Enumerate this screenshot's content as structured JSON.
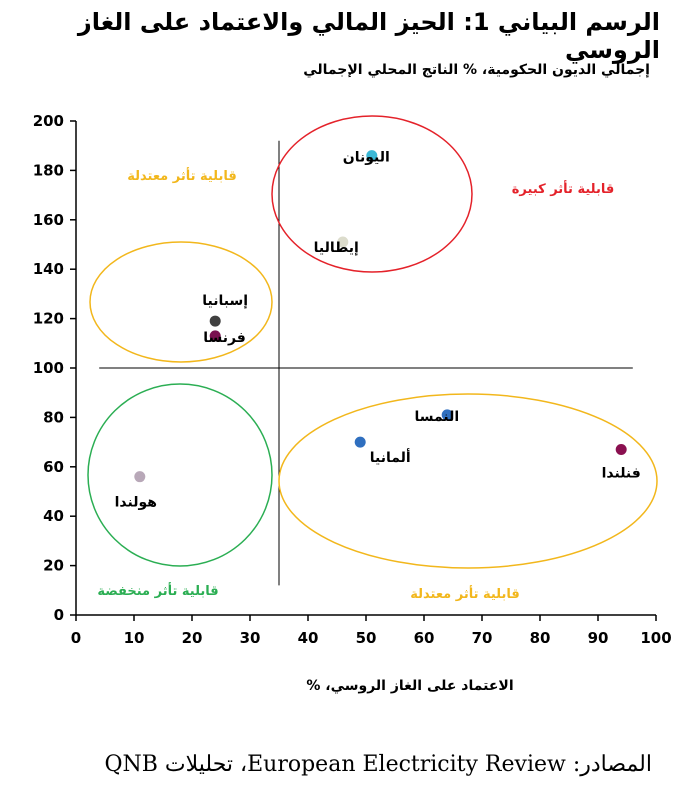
{
  "chart_data": {
    "type": "scatter",
    "title": "الرسم البياني 1: الحيز المالي والاعتماد على الغاز الروسي",
    "ylabel": "إجمالي الديون الحكومية، % الناتج المحلي الإجمالي",
    "xlabel": "الاعتماد على الغاز الروسي، %",
    "xlim": [
      0,
      100
    ],
    "ylim": [
      0,
      200
    ],
    "xticks": [
      0,
      10,
      20,
      30,
      40,
      50,
      60,
      70,
      80,
      90,
      100
    ],
    "yticks": [
      0,
      20,
      40,
      60,
      80,
      100,
      120,
      140,
      160,
      180,
      200
    ],
    "divider_x": 35,
    "divider_y": 100,
    "points": [
      {
        "name": "اليونان",
        "x": 51,
        "y": 186,
        "color": "#3bb8d6"
      },
      {
        "name": "إيطاليا",
        "x": 46,
        "y": 151,
        "color": "#dcdccc"
      },
      {
        "name": "إسبانيا",
        "x": 24,
        "y": 119,
        "color": "#404040"
      },
      {
        "name": "فرنسا",
        "x": 24,
        "y": 113,
        "color": "#7a1050"
      },
      {
        "name": "النمسا",
        "x": 64,
        "y": 81,
        "color": "#2f6fbf"
      },
      {
        "name": "ألمانيا",
        "x": 49,
        "y": 70,
        "color": "#2f6fbf"
      },
      {
        "name": "فنلندا",
        "x": 94,
        "y": 67,
        "color": "#8a1050"
      },
      {
        "name": "هولندا",
        "x": 11,
        "y": 56,
        "color": "#b8a8b8"
      }
    ],
    "zones": [
      {
        "label": "قابلية تأثر كبيرة",
        "color": "#e4222a"
      },
      {
        "label": "قابلية تأثر معتدلة",
        "color": "#f2b71c"
      },
      {
        "label": "قابلية تأثر معتدلة",
        "color": "#f2b71c"
      },
      {
        "label": "قابلية تأثر منخفضة",
        "color": "#2bae53"
      }
    ]
  },
  "source": "المصادر: European Electricity Review، تحليلات QNB"
}
